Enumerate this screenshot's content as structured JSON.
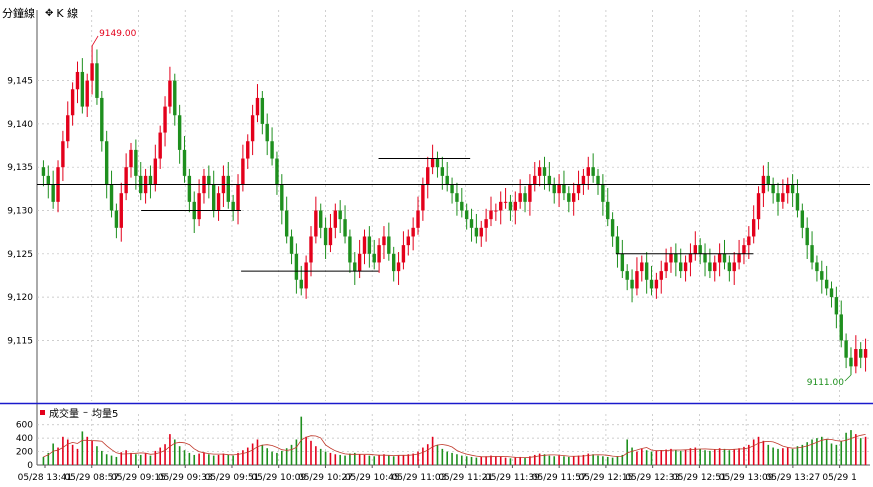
{
  "toolbar": {
    "minute_label": "分鐘線",
    "kline_icon": "crosshair-icon",
    "kline_label": "K 線"
  },
  "volume_panel": {
    "legend_volume": "成交量",
    "legend_dash": "–",
    "legend_ma": "均量5"
  },
  "colors": {
    "up": "#e3001b",
    "down": "#1e8f1e",
    "grid": "#bdbdbd",
    "separator": "#1a1acc",
    "level_line": "#000000",
    "ma_line": "#c0392b",
    "high_label": "#e3001b",
    "low_label": "#1e8f1e"
  },
  "chart_data": [
    {
      "type": "candlestick",
      "ylim": [
        9108,
        9152
      ],
      "y_ticks": [
        "9,145",
        "9,140",
        "9,135",
        "9,130",
        "9,125",
        "9,120",
        "9,115"
      ],
      "y_tick_values": [
        9145,
        9140,
        9135,
        9130,
        9125,
        9120,
        9115
      ],
      "high_annotation": "9149.00",
      "high_value": 9149,
      "low_annotation": "9111.00",
      "low_value": 9111,
      "grid": true,
      "series_close": [
        9134,
        9133,
        9131,
        9135,
        9138,
        9141,
        9144,
        9146,
        9142,
        9145,
        9147,
        9143,
        9138,
        9133,
        9130,
        9128,
        9132,
        9135,
        9137,
        9134,
        9132,
        9134,
        9133,
        9136,
        9139,
        9142,
        9145,
        9141,
        9137,
        9134,
        9131,
        9129,
        9132,
        9134,
        9133,
        9130,
        9132,
        9134,
        9131,
        9130,
        9133,
        9136,
        9138,
        9141,
        9143,
        9140,
        9138,
        9136,
        9133,
        9130,
        9127,
        9125,
        9122,
        9121,
        9124,
        9127,
        9130,
        9128,
        9126,
        9128,
        9130,
        9129,
        9127,
        9124,
        9123,
        9125,
        9127,
        9125,
        9124,
        9126,
        9127,
        9125,
        9123,
        9124,
        9126,
        9127,
        9128,
        9130,
        9133,
        9135,
        9136,
        9135,
        9134,
        9133,
        9132,
        9131,
        9130,
        9129,
        9128,
        9127,
        9128,
        9129,
        9130,
        9130,
        9131,
        9131,
        9130,
        9131,
        9132,
        9131,
        9133,
        9134,
        9135,
        9134,
        9133,
        9132,
        9133,
        9132,
        9131,
        9132,
        9133,
        9134,
        9135,
        9134,
        9133,
        9131,
        9129,
        9127,
        9125,
        9123,
        9122,
        9121,
        9123,
        9124,
        9122,
        9121,
        9122,
        9123,
        9124,
        9125,
        9124,
        9123,
        9124,
        9125,
        9126,
        9125,
        9124,
        9123,
        9124,
        9125,
        9124,
        9123,
        9124,
        9125,
        9126,
        9127,
        9129,
        9132,
        9134,
        9133,
        9132,
        9131,
        9132,
        9133,
        9132,
        9130,
        9128,
        9126,
        9124,
        9123,
        9122,
        9121,
        9120,
        9118,
        9115,
        9113,
        9112,
        9114,
        9113,
        9114
      ],
      "levels": [
        {
          "value": 9133,
          "from": 0.0,
          "to": 1.0
        },
        {
          "value": 9130,
          "from": 0.125,
          "to": 0.245
        },
        {
          "value": 9123,
          "from": 0.245,
          "to": 0.41
        },
        {
          "value": 9136,
          "from": 0.41,
          "to": 0.52
        },
        {
          "value": 9125,
          "from": 0.695,
          "to": 0.86
        }
      ]
    },
    {
      "type": "bar",
      "title": "成交量",
      "ylim": [
        0,
        700
      ],
      "y_ticks": [
        "600",
        "400",
        "200",
        "0"
      ],
      "y_tick_values": [
        600,
        400,
        200,
        0
      ],
      "series": [
        {
          "name": "成交量",
          "values": [
            120,
            180,
            320,
            260,
            420,
            380,
            300,
            240,
            500,
            420,
            360,
            280,
            210,
            160,
            140,
            120,
            190,
            220,
            180,
            160,
            150,
            170,
            140,
            210,
            260,
            310,
            460,
            380,
            280,
            220,
            180,
            150,
            170,
            190,
            160,
            140,
            150,
            170,
            150,
            140,
            180,
            220,
            260,
            320,
            380,
            300,
            250,
            200,
            180,
            210,
            250,
            300,
            380,
            720,
            420,
            360,
            280,
            240,
            200,
            180,
            160,
            150,
            140,
            170,
            180,
            160,
            150,
            140,
            130,
            150,
            160,
            140,
            130,
            140,
            150,
            160,
            170,
            200,
            260,
            310,
            420,
            300,
            240,
            200,
            180,
            160,
            140,
            130,
            120,
            110,
            120,
            130,
            140,
            130,
            120,
            110,
            100,
            110,
            120,
            110,
            130,
            150,
            170,
            160,
            140,
            130,
            140,
            130,
            120,
            130,
            140,
            150,
            170,
            160,
            140,
            130,
            120,
            110,
            130,
            150,
            380,
            260,
            200,
            240,
            220,
            200,
            210,
            220,
            230,
            240,
            220,
            210,
            230,
            250,
            260,
            240,
            220,
            210,
            230,
            250,
            240,
            220,
            230,
            250,
            270,
            300,
            380,
            420,
            360,
            300,
            260,
            240,
            250,
            260,
            240,
            280,
            300,
            340,
            380,
            400,
            420,
            380,
            320,
            300,
            350,
            480,
            520,
            460,
            400,
            420
          ]
        },
        {
          "name": "均量5",
          "values": []
        }
      ]
    }
  ],
  "x_tick_labels": [
    "05/28 13:41",
    "05/29 08:57",
    "05/29 09:15",
    "05/29 09:33",
    "05/29 09:51",
    "05/29 10:09",
    "05/29 10:27",
    "05/29 10:45",
    "05/29 11:03",
    "05/29 11:21",
    "05/29 11:39",
    "05/29 11:57",
    "05/29 12:15",
    "05/29 12:33",
    "05/29 12:51",
    "05/29 13:09",
    "05/29 13:27",
    "05/29 1"
  ]
}
